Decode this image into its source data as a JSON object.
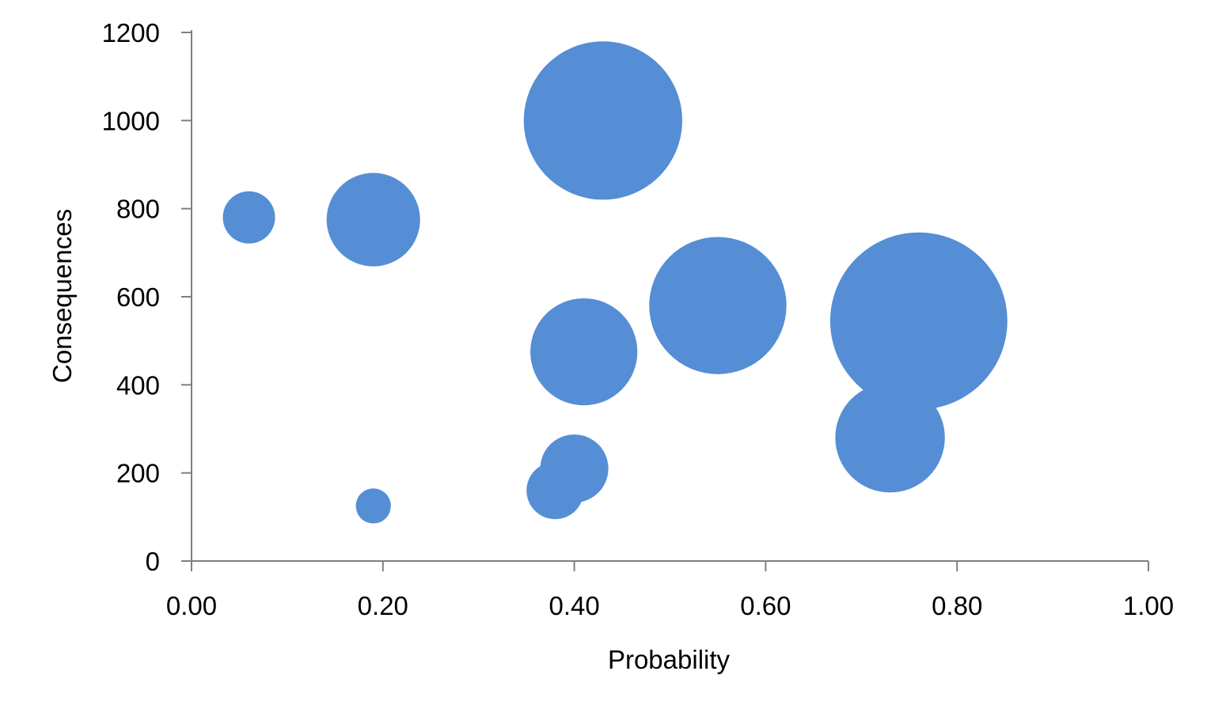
{
  "colors": {
    "bubble": "#558ed5",
    "axis": "#7f7f7f",
    "text": "#000000",
    "background": "#ffffff"
  },
  "chart_data": {
    "type": "scatter",
    "subtype": "bubble",
    "xlabel": "Probability",
    "ylabel": "Consequences",
    "xlim": [
      0,
      1
    ],
    "ylim": [
      0,
      1200
    ],
    "x_ticks": [
      "0.00",
      "0.20",
      "0.40",
      "0.60",
      "0.80",
      "1.00"
    ],
    "x_tick_values": [
      0,
      0.2,
      0.4,
      0.6,
      0.8,
      1.0
    ],
    "y_ticks": [
      "0",
      "200",
      "400",
      "600",
      "800",
      "1000",
      "1200"
    ],
    "y_tick_values": [
      0,
      200,
      400,
      600,
      800,
      1000,
      1200
    ],
    "grid": false,
    "legend": "none",
    "series": [
      {
        "points": [
          {
            "x": 0.06,
            "y": 780,
            "size": 1.0
          },
          {
            "x": 0.19,
            "y": 775,
            "size": 3.2
          },
          {
            "x": 0.19,
            "y": 125,
            "size": 0.45
          },
          {
            "x": 0.43,
            "y": 1000,
            "size": 9.2
          },
          {
            "x": 0.41,
            "y": 475,
            "size": 4.2
          },
          {
            "x": 0.4,
            "y": 210,
            "size": 1.7
          },
          {
            "x": 0.38,
            "y": 160,
            "size": 1.2
          },
          {
            "x": 0.55,
            "y": 580,
            "size": 6.9
          },
          {
            "x": 0.76,
            "y": 545,
            "size": 11.5
          },
          {
            "x": 0.73,
            "y": 280,
            "size": 4.4
          }
        ]
      }
    ]
  }
}
